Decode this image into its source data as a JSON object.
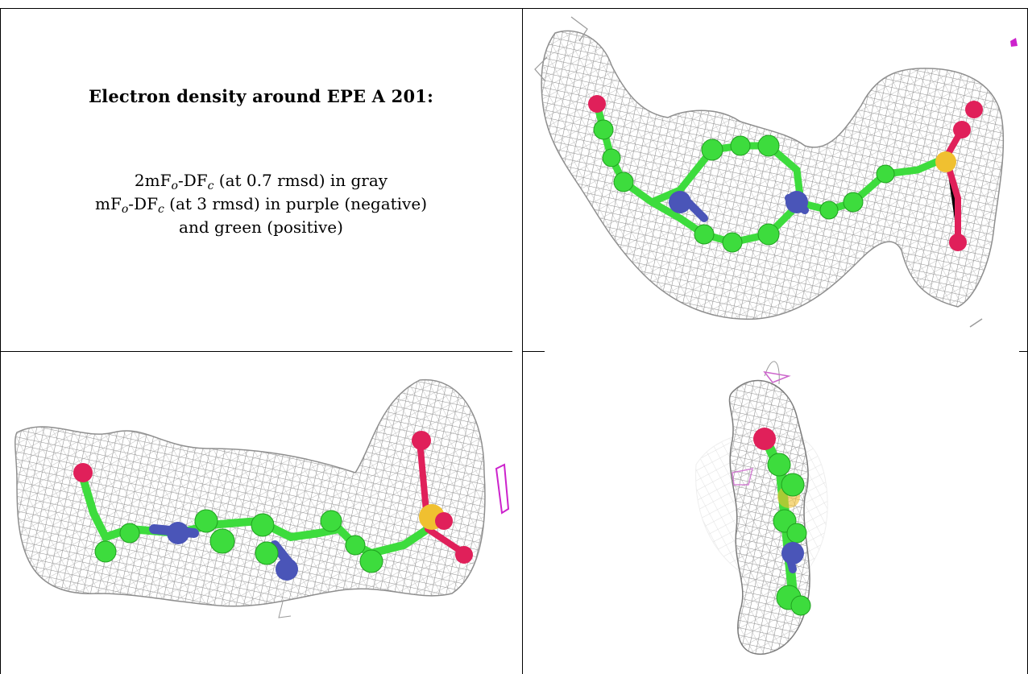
{
  "caption": {
    "title": "Electron density around EPE A 201:",
    "legend_lines": [
      {
        "pre": "2mF",
        "sub1": "o",
        "mid": "-DF",
        "sub2": "c",
        "post": " (at 0.7 rmsd) in gray"
      },
      {
        "pre": "mF",
        "sub1": "o",
        "mid": "-DF",
        "sub2": "c",
        "post": " (at 3 rmsd) in purple (negative)"
      },
      {
        "pre": "",
        "sub1": "",
        "mid": "",
        "sub2": "",
        "post": "and green (positive)"
      }
    ]
  },
  "colors": {
    "mesh": "#8e8e8e",
    "carbon": "#3ddc3d",
    "nitrogen": "#4a55b8",
    "oxygen": "#e0205a",
    "sulfur": "#f0c030",
    "negative_density": "#cc22cc"
  }
}
